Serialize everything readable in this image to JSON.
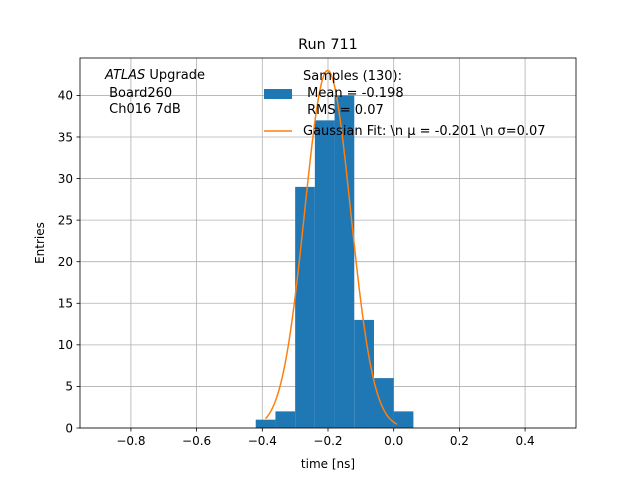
{
  "chart_data": {
    "type": "bar",
    "title": "Run 711",
    "xlabel": "time [ns]",
    "ylabel": "Entries",
    "xlim": [
      -0.955,
      0.555
    ],
    "ylim": [
      0,
      44.5
    ],
    "x_ticks": [
      -0.8,
      -0.6,
      -0.4,
      -0.2,
      0.0,
      0.2,
      0.4
    ],
    "x_tick_labels": [
      "−0.8",
      "−0.6",
      "−0.4",
      "−0.2",
      "0.0",
      "0.2",
      "0.4"
    ],
    "y_ticks": [
      0,
      5,
      10,
      15,
      20,
      25,
      30,
      35,
      40
    ],
    "y_tick_labels": [
      "0",
      "5",
      "10",
      "15",
      "20",
      "25",
      "30",
      "35",
      "40"
    ],
    "grid": true,
    "legend_position": "top-right",
    "annotation": {
      "line1_italic": "ATLAS",
      "line1_rest": " Upgrade",
      "line2": " Board260",
      "line3": " Ch016 7dB"
    },
    "series": [
      {
        "name": "Samples (130):",
        "name_line2": " Mean = -0.198",
        "name_line3": " RMS = 0.07",
        "kind": "histogram",
        "color": "#1f77b4",
        "bins": [
          {
            "x0": -0.42,
            "x1": -0.36,
            "count": 1
          },
          {
            "x0": -0.36,
            "x1": -0.3,
            "count": 2
          },
          {
            "x0": -0.3,
            "x1": -0.24,
            "count": 29
          },
          {
            "x0": -0.24,
            "x1": -0.18,
            "count": 37
          },
          {
            "x0": -0.18,
            "x1": -0.12,
            "count": 40
          },
          {
            "x0": -0.12,
            "x1": -0.06,
            "count": 13
          },
          {
            "x0": -0.06,
            "x1": 0.0,
            "count": 6
          },
          {
            "x0": 0.0,
            "x1": 0.06,
            "count": 2
          }
        ]
      },
      {
        "name": "Gaussian Fit: \\n μ = -0.201 \\n σ=0.07",
        "kind": "line",
        "color": "#ff7f0e",
        "amplitude": 43,
        "mu": -0.201,
        "sigma": 0.07,
        "x_range": [
          -0.39,
          0.01
        ]
      }
    ]
  }
}
